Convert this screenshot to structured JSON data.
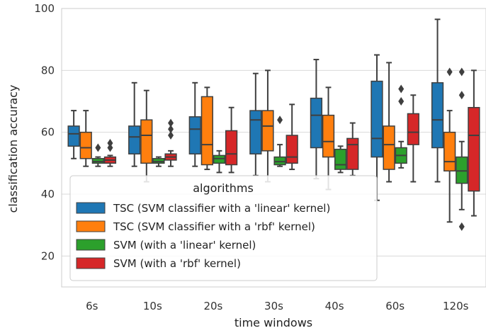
{
  "chart_data": {
    "type": "box",
    "xlabel": "time windows",
    "ylabel": "classification accuracy",
    "ylim": [
      10,
      100
    ],
    "yticks": [
      20,
      40,
      60,
      80,
      100
    ],
    "grid": true,
    "legend_position": "bottom-left",
    "categories": [
      "6s",
      "10s",
      "20s",
      "30s",
      "40s",
      "60s",
      "120s"
    ],
    "legend": {
      "title": "algorithms",
      "entries": [
        "TSC (SVM classifier with a 'linear' kernel)",
        "TSC (SVM classifier with a 'rbf' kernel)",
        "SVM (with a 'linear' kernel)",
        "SVM (with a 'rbf' kernel)"
      ]
    },
    "series": [
      {
        "color": "#1f77b4",
        "boxes": [
          {
            "whislo": 51.5,
            "q1": 55.5,
            "med": 59.5,
            "q3": 62,
            "whishi": 67,
            "outliers": []
          },
          {
            "whislo": 49,
            "q1": 53,
            "med": 58.5,
            "q3": 62,
            "whishi": 76,
            "outliers": []
          },
          {
            "whislo": 49,
            "q1": 53,
            "med": 61,
            "q3": 65,
            "whishi": 76,
            "outliers": []
          },
          {
            "whislo": 46,
            "q1": 53,
            "med": 64,
            "q3": 67,
            "whishi": 79,
            "outliers": []
          },
          {
            "whislo": 45,
            "q1": 55,
            "med": 65.5,
            "q3": 71,
            "whishi": 83.5,
            "outliers": []
          },
          {
            "whislo": 38,
            "q1": 52,
            "med": 58,
            "q3": 76.5,
            "whishi": 85,
            "outliers": []
          },
          {
            "whislo": 44,
            "q1": 55,
            "med": 64,
            "q3": 76,
            "whishi": 96.5,
            "outliers": []
          }
        ]
      },
      {
        "color": "#ff7f0e",
        "boxes": [
          {
            "whislo": 49,
            "q1": 51.5,
            "med": 55,
            "q3": 60,
            "whishi": 67,
            "outliers": []
          },
          {
            "whislo": 44,
            "q1": 50,
            "med": 59,
            "q3": 64,
            "whishi": 73.5,
            "outliers": []
          },
          {
            "whislo": 48,
            "q1": 49.5,
            "med": 56,
            "q3": 71.5,
            "whishi": 74.5,
            "outliers": []
          },
          {
            "whislo": 44,
            "q1": 54,
            "med": 62,
            "q3": 67,
            "whishi": 80,
            "outliers": []
          },
          {
            "whislo": 41.5,
            "q1": 52,
            "med": 57,
            "q3": 65.5,
            "whishi": 74.5,
            "outliers": []
          },
          {
            "whislo": 44,
            "q1": 48,
            "med": 56,
            "q3": 62,
            "whishi": 82.5,
            "outliers": []
          },
          {
            "whislo": 31,
            "q1": 47.5,
            "med": 50.5,
            "q3": 60,
            "whishi": 67,
            "outliers": [
              79.5
            ]
          }
        ]
      },
      {
        "color": "#2ca02c",
        "boxes": [
          {
            "whislo": 49,
            "q1": 50,
            "med": 50.5,
            "q3": 51.5,
            "whishi": 52,
            "outliers": [
              55
            ]
          },
          {
            "whislo": 49,
            "q1": 50,
            "med": 50.5,
            "q3": 51.5,
            "whishi": 52,
            "outliers": []
          },
          {
            "whislo": 47,
            "q1": 50,
            "med": 51.5,
            "q3": 52.5,
            "whishi": 54,
            "outliers": []
          },
          {
            "whislo": 49,
            "q1": 49.5,
            "med": 50.5,
            "q3": 52,
            "whishi": 56,
            "outliers": [
              64
            ]
          },
          {
            "whislo": 47,
            "q1": 48,
            "med": 49.5,
            "q3": 54.5,
            "whishi": 55.5,
            "outliers": []
          },
          {
            "whislo": 48.5,
            "q1": 50,
            "med": 52.5,
            "q3": 55,
            "whishi": 57,
            "outliers": [
              70,
              74
            ]
          },
          {
            "whislo": 35,
            "q1": 43.5,
            "med": 47.5,
            "q3": 52,
            "whishi": 57,
            "outliers": [
              29.5,
              72,
              79.5
            ]
          }
        ]
      },
      {
        "color": "#d62728",
        "boxes": [
          {
            "whislo": 49,
            "q1": 50,
            "med": 51,
            "q3": 52,
            "whishi": 52.5,
            "outliers": [
              55,
              56.5
            ]
          },
          {
            "whislo": 49,
            "q1": 51,
            "med": 52,
            "q3": 53,
            "whishi": 54,
            "outliers": [
              59,
              61,
              63
            ]
          },
          {
            "whislo": 47,
            "q1": 49.5,
            "med": 53,
            "q3": 60.5,
            "whishi": 68,
            "outliers": []
          },
          {
            "whislo": 48,
            "q1": 50,
            "med": 52,
            "q3": 59,
            "whishi": 69,
            "outliers": []
          },
          {
            "whislo": 46,
            "q1": 48,
            "med": 56,
            "q3": 58,
            "whishi": 63,
            "outliers": []
          },
          {
            "whislo": 44,
            "q1": 56,
            "med": 60,
            "q3": 66,
            "whishi": 72,
            "outliers": []
          },
          {
            "whislo": 33,
            "q1": 41,
            "med": 59,
            "q3": 68,
            "whishi": 80,
            "outliers": []
          }
        ]
      }
    ]
  }
}
